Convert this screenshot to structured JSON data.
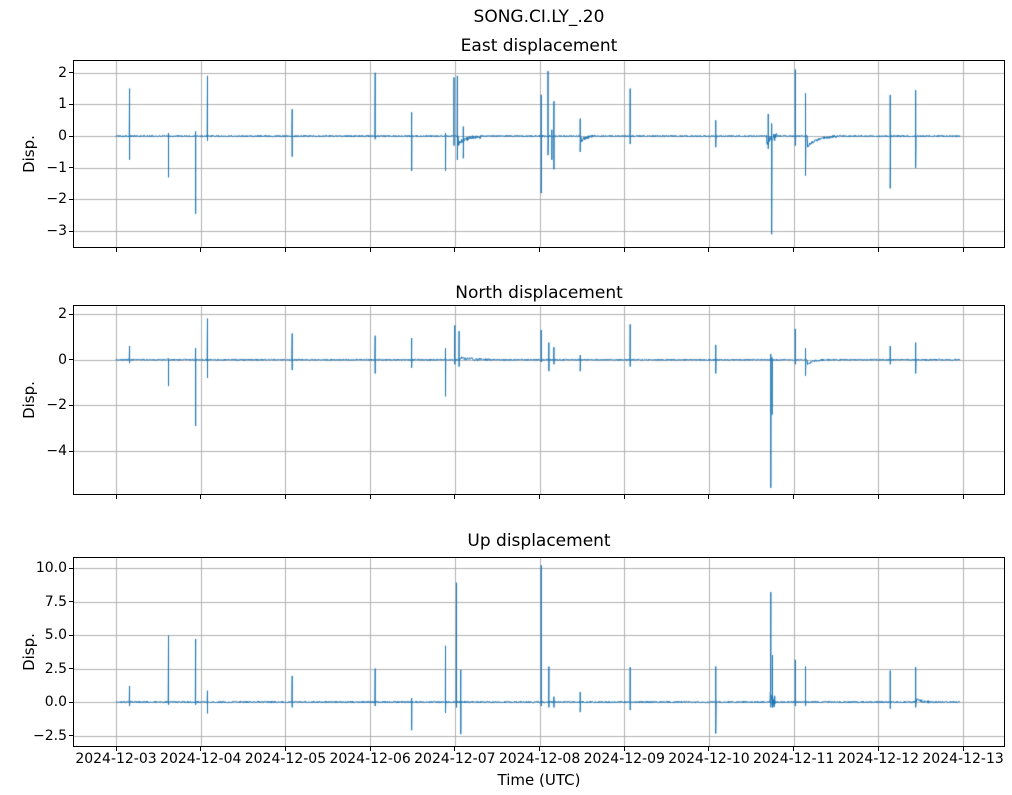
{
  "figure": {
    "suptitle": "SONG.CI.LY_.20",
    "x_axis": {
      "label": "Time (UTC)",
      "tick_labels": [
        "2024-12-03",
        "2024-12-04",
        "2024-12-05",
        "2024-12-06",
        "2024-12-07",
        "2024-12-08",
        "2024-12-09",
        "2024-12-10",
        "2024-12-11",
        "2024-12-12",
        "2024-12-13"
      ],
      "tick_days": [
        0,
        1,
        2,
        3,
        4,
        5,
        6,
        7,
        8,
        9,
        10
      ],
      "xlim_days": [
        -0.496,
        10.483
      ],
      "data_span_days": [
        0.0,
        9.96
      ]
    },
    "colors": {
      "line": "#1f77b4",
      "grid": "#b0b0b0",
      "axis": "#000000",
      "text": "#000000",
      "background": "#ffffff"
    }
  },
  "chart_data": [
    {
      "type": "line",
      "title": "East displacement",
      "ylabel": "Disp.",
      "legend": null,
      "grid": true,
      "yticks": [
        2,
        1,
        0,
        -1,
        -2,
        -3
      ],
      "ytick_labels": [
        "2",
        "1",
        "0",
        "−1",
        "−2",
        "−3"
      ],
      "ylim": [
        -3.5,
        2.37
      ],
      "noise_amp": 0.025,
      "seed": 101,
      "spikes": [
        [
          0.16,
          1.5,
          -0.75
        ],
        [
          0.62,
          0.1,
          -1.3
        ],
        [
          0.94,
          0.15,
          -2.45
        ],
        [
          1.08,
          1.9,
          -0.15
        ],
        [
          2.08,
          0.85,
          -0.65
        ],
        [
          3.06,
          2.0,
          -0.1
        ],
        [
          3.49,
          0.75,
          -1.1
        ],
        [
          3.89,
          0.1,
          -1.1
        ],
        [
          3.99,
          1.85,
          -0.3
        ],
        [
          4.03,
          1.9,
          -0.75
        ],
        [
          4.1,
          0.3,
          -0.7
        ],
        [
          5.02,
          1.3,
          -1.8
        ],
        [
          5.1,
          2.05,
          -0.6
        ],
        [
          5.145,
          0.2,
          -0.75
        ],
        [
          5.17,
          1.1,
          -1.05
        ],
        [
          5.48,
          0.55,
          -0.5
        ],
        [
          6.07,
          1.5,
          -0.25
        ],
        [
          7.08,
          0.5,
          -0.35
        ],
        [
          7.7,
          0.7,
          -0.4
        ],
        [
          7.74,
          0.4,
          -3.1
        ],
        [
          8.02,
          2.1,
          -0.3
        ],
        [
          8.14,
          1.35,
          -1.25
        ],
        [
          9.14,
          1.3,
          -1.65
        ],
        [
          9.44,
          1.45,
          -1.0
        ]
      ],
      "wobbles": [
        {
          "t0": 4.04,
          "t1": 4.3,
          "amp": -0.25,
          "noise": 0.06
        },
        {
          "t0": 5.49,
          "t1": 5.65,
          "amp": -0.15,
          "noise": 0.04
        },
        {
          "t0": 7.68,
          "t1": 7.8,
          "amp": -0.2,
          "noise": 0.12
        },
        {
          "t0": 8.16,
          "t1": 8.5,
          "amp": -0.35,
          "noise": 0.03
        }
      ]
    },
    {
      "type": "line",
      "title": "North displacement",
      "ylabel": "Disp.",
      "legend": null,
      "grid": true,
      "yticks": [
        2,
        0,
        -2,
        -4
      ],
      "ytick_labels": [
        "2",
        "0",
        "−2",
        "−4"
      ],
      "ylim": [
        -5.87,
        2.35
      ],
      "noise_amp": 0.03,
      "seed": 202,
      "spikes": [
        [
          0.16,
          0.6,
          -0.15
        ],
        [
          0.62,
          0.05,
          -1.15
        ],
        [
          0.94,
          0.5,
          -2.9
        ],
        [
          1.08,
          1.8,
          -0.8
        ],
        [
          2.08,
          1.15,
          -0.45
        ],
        [
          3.06,
          1.05,
          -0.6
        ],
        [
          3.49,
          0.95,
          -0.35
        ],
        [
          3.89,
          0.5,
          -1.6
        ],
        [
          4.0,
          1.5,
          -0.2
        ],
        [
          4.05,
          1.25,
          -0.3
        ],
        [
          5.02,
          1.3,
          -0.1
        ],
        [
          5.11,
          0.75,
          -0.5
        ],
        [
          5.17,
          0.55,
          -0.2
        ],
        [
          5.48,
          0.2,
          -0.5
        ],
        [
          6.07,
          1.55,
          -0.3
        ],
        [
          7.08,
          0.65,
          -0.6
        ],
        [
          7.73,
          0.25,
          -5.6
        ],
        [
          7.745,
          0.1,
          -2.4
        ],
        [
          8.02,
          1.35,
          -0.2
        ],
        [
          8.14,
          0.5,
          -0.7
        ],
        [
          9.14,
          0.6,
          -0.2
        ],
        [
          9.44,
          0.75,
          -0.6
        ]
      ],
      "wobbles": [
        {
          "t0": 4.06,
          "t1": 4.4,
          "amp": 0.1,
          "noise": 0.05
        },
        {
          "t0": 8.16,
          "t1": 8.35,
          "amp": -0.2,
          "noise": 0.03
        }
      ]
    },
    {
      "type": "line",
      "title": "Up displacement",
      "ylabel": "Disp.",
      "legend": null,
      "grid": true,
      "yticks": [
        10.0,
        7.5,
        5.0,
        2.5,
        0.0,
        -2.5
      ],
      "ytick_labels": [
        "10.0",
        "7.5",
        "5.0",
        "2.5",
        "0.0",
        "−2.5"
      ],
      "ylim": [
        -3.28,
        10.75
      ],
      "noise_amp": 0.06,
      "seed": 303,
      "spikes": [
        [
          0.16,
          1.2,
          -0.3
        ],
        [
          0.62,
          4.95,
          -0.2
        ],
        [
          0.94,
          4.7,
          -0.2
        ],
        [
          1.08,
          0.85,
          -0.85
        ],
        [
          2.08,
          1.95,
          -0.4
        ],
        [
          3.06,
          2.5,
          -0.3
        ],
        [
          3.49,
          0.3,
          -2.1
        ],
        [
          3.89,
          4.2,
          -0.8
        ],
        [
          4.02,
          8.9,
          -0.4
        ],
        [
          4.07,
          2.4,
          -2.4
        ],
        [
          5.02,
          10.2,
          -0.3
        ],
        [
          5.11,
          2.65,
          -0.4
        ],
        [
          5.17,
          0.4,
          -0.4
        ],
        [
          5.48,
          0.75,
          -0.75
        ],
        [
          6.07,
          2.6,
          -0.6
        ],
        [
          7.08,
          2.65,
          -2.35
        ],
        [
          7.73,
          8.2,
          -0.4
        ],
        [
          7.75,
          3.5,
          -0.4
        ],
        [
          8.02,
          3.15,
          -0.3
        ],
        [
          8.14,
          2.65,
          -0.3
        ],
        [
          9.14,
          2.35,
          -0.5
        ],
        [
          9.44,
          2.6,
          -0.4
        ]
      ],
      "wobbles": [
        {
          "t0": 7.72,
          "t1": 7.78,
          "amp": 0.8,
          "noise": 0.5
        },
        {
          "t0": 9.45,
          "t1": 9.6,
          "amp": 0.25,
          "noise": 0.08
        }
      ]
    }
  ]
}
